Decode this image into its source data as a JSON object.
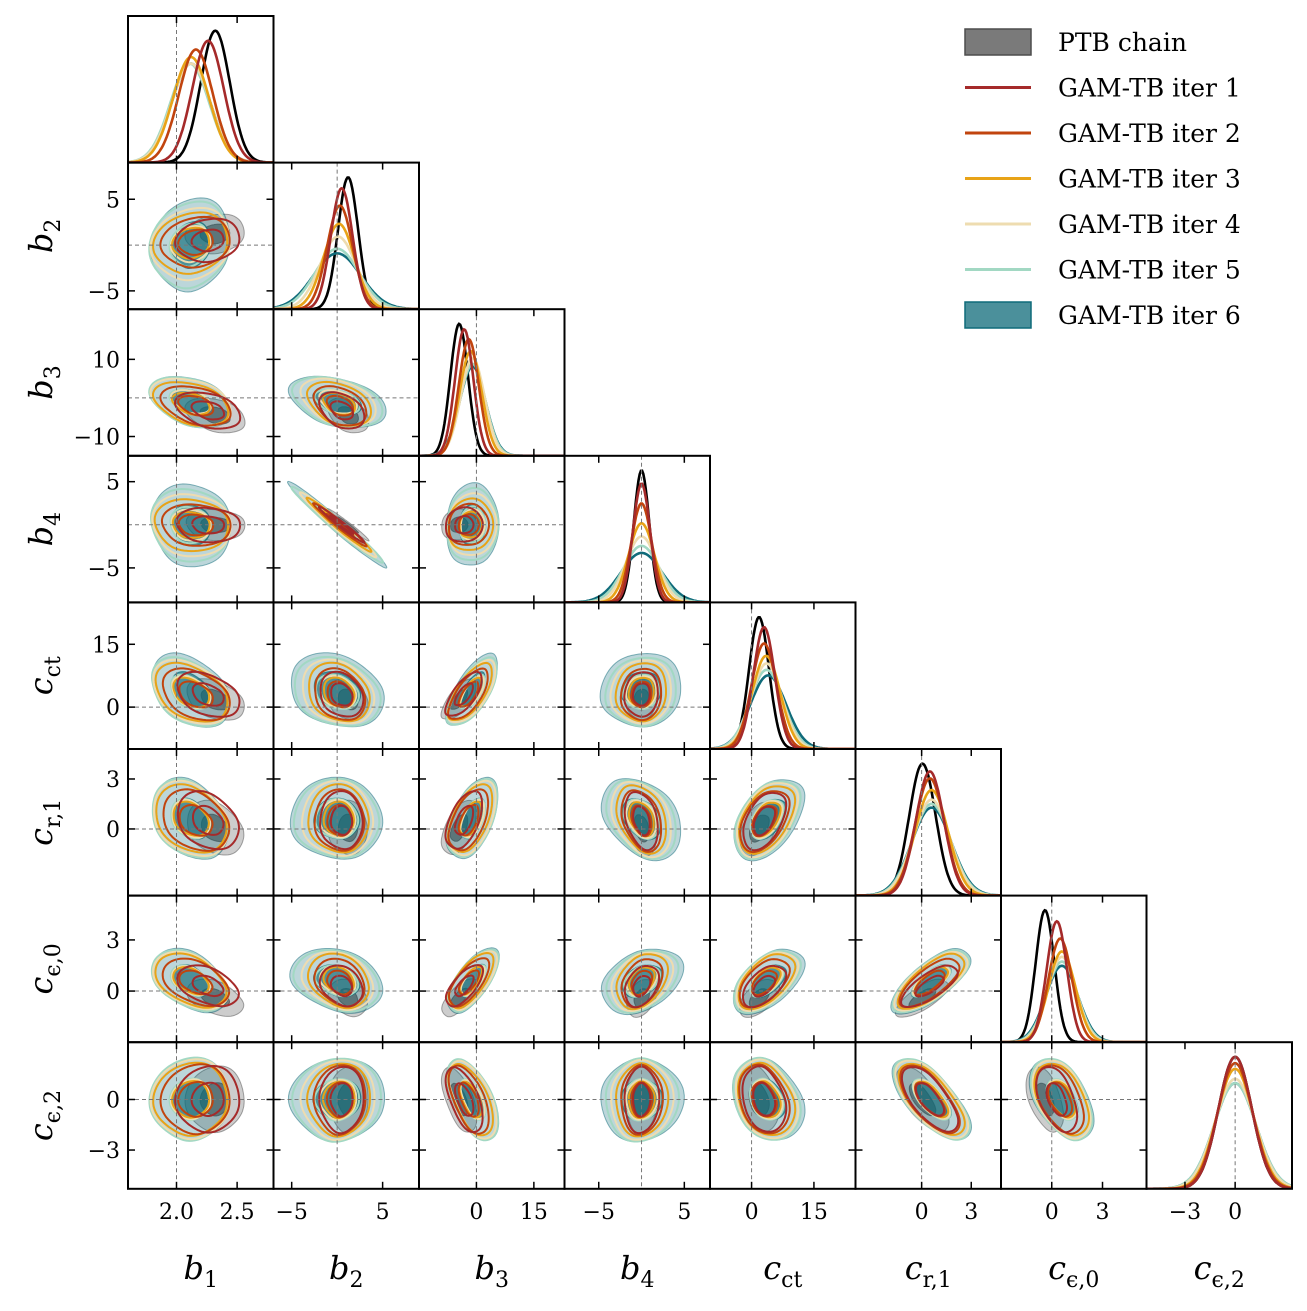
{
  "chart_data": {
    "type": "corner",
    "title": "",
    "parameters": [
      {
        "key": "b1",
        "base": "b",
        "sub": "1",
        "italic_sub": false,
        "truth": 2.0,
        "range": [
          1.6,
          2.8
        ],
        "ticks": [
          "2.0",
          "2.5"
        ],
        "tick_values": [
          2.0,
          2.5
        ]
      },
      {
        "key": "b2",
        "base": "b",
        "sub": "2",
        "italic_sub": false,
        "truth": 0.0,
        "range": [
          -7,
          9
        ],
        "ticks": [
          "−5",
          "5"
        ],
        "tick_values": [
          -5,
          5
        ]
      },
      {
        "key": "b3",
        "base": "b",
        "sub": "3",
        "italic_sub": false,
        "truth": 0.0,
        "range": [
          -15,
          23
        ],
        "ticks": [
          "0",
          "15"
        ],
        "tick_values": [
          0,
          15
        ],
        "row_ticks": [
          "10",
          "−10"
        ],
        "row_tick_values": [
          10,
          -10
        ]
      },
      {
        "key": "b4",
        "base": "b",
        "sub": "4",
        "italic_sub": false,
        "truth": 0.0,
        "range": [
          -9,
          8
        ],
        "ticks": [
          "−5",
          "5"
        ],
        "tick_values": [
          -5,
          5
        ]
      },
      {
        "key": "c_ct",
        "base": "c",
        "sub": "ct",
        "italic_sub": false,
        "truth": 0.0,
        "range": [
          -10,
          25
        ],
        "ticks": [
          "0",
          "15"
        ],
        "tick_values": [
          0,
          15
        ]
      },
      {
        "key": "c_r1",
        "base": "c",
        "sub": "r,1",
        "italic_sub": false,
        "truth": 0.0,
        "range": [
          -4,
          4.8
        ],
        "ticks": [
          "0",
          "3"
        ],
        "tick_values": [
          0,
          3
        ]
      },
      {
        "key": "c_eps0",
        "base": "c",
        "sub": "ϵ,0",
        "italic_sub": false,
        "truth": 0.0,
        "range": [
          -3,
          5.6
        ],
        "ticks": [
          "0",
          "3"
        ],
        "tick_values": [
          0,
          3
        ]
      },
      {
        "key": "c_eps2",
        "base": "c",
        "sub": "ϵ,2",
        "italic_sub": false,
        "truth": 0.0,
        "range": [
          -5.3,
          3.4
        ],
        "ticks": [
          "−3",
          "0"
        ],
        "tick_values": [
          -3,
          0
        ]
      }
    ],
    "series": [
      {
        "name": "PTB chain",
        "color": "#4d4d4d",
        "style": "filled",
        "center": [
          2.32,
          1.2,
          -4.5,
          0.0,
          1.8,
          0.05,
          -0.4,
          0.0
        ],
        "sigma": [
          0.12,
          1.1,
          2.3,
          0.9,
          2.4,
          0.8,
          0.55,
          1.0
        ]
      },
      {
        "name": "GAM-TB iter 1",
        "color": "#a52a2a",
        "style": "line",
        "center": [
          2.26,
          0.5,
          -3.2,
          0.0,
          3.0,
          0.5,
          0.3,
          0.0
        ],
        "sigma": [
          0.13,
          1.2,
          2.4,
          1.0,
          2.6,
          0.85,
          0.6,
          1.0
        ]
      },
      {
        "name": "GAM-TB iter 2",
        "color": "#c1440e",
        "style": "line",
        "center": [
          2.16,
          0.3,
          -2.0,
          0.0,
          3.0,
          0.5,
          0.5,
          0.0
        ],
        "sigma": [
          0.14,
          1.4,
          2.6,
          1.2,
          3.0,
          0.9,
          0.7,
          1.05
        ]
      },
      {
        "name": "GAM-TB iter 3",
        "color": "#e8a317",
        "style": "line",
        "center": [
          2.12,
          0.2,
          -1.5,
          0.0,
          3.5,
          0.6,
          0.6,
          0.0
        ],
        "sigma": [
          0.15,
          1.7,
          2.9,
          1.5,
          3.4,
          1.0,
          0.8,
          1.1
        ]
      },
      {
        "name": "GAM-TB iter 4",
        "color": "#eedcb0",
        "style": "line",
        "center": [
          2.12,
          0.1,
          -1.0,
          0.0,
          3.6,
          0.6,
          0.6,
          0.0
        ],
        "sigma": [
          0.16,
          2.0,
          3.1,
          1.8,
          3.7,
          1.1,
          0.85,
          1.2
        ]
      },
      {
        "name": "GAM-TB iter 5",
        "color": "#a2d8c3",
        "style": "line",
        "center": [
          2.11,
          0.0,
          -1.0,
          0.0,
          3.6,
          0.6,
          0.6,
          0.0
        ],
        "sigma": [
          0.16,
          2.4,
          3.3,
          2.1,
          4.0,
          1.15,
          0.9,
          1.25
        ]
      },
      {
        "name": "GAM-TB iter 6",
        "color": "#0f6b7a",
        "style": "filled",
        "center": [
          2.12,
          0.0,
          -1.0,
          0.0,
          4.0,
          0.6,
          0.6,
          0.0
        ],
        "sigma": [
          0.16,
          2.6,
          3.4,
          2.4,
          4.3,
          1.2,
          0.95,
          1.25
        ]
      }
    ],
    "correlations": [
      {
        "pair": [
          "b1",
          "b2"
        ],
        "rho": 0.1
      },
      {
        "pair": [
          "b1",
          "b3"
        ],
        "rho": -0.35
      },
      {
        "pair": [
          "b1",
          "b4"
        ],
        "rho": -0.05
      },
      {
        "pair": [
          "b1",
          "c_ct"
        ],
        "rho": -0.35
      },
      {
        "pair": [
          "b1",
          "c_r1"
        ],
        "rho": -0.3
      },
      {
        "pair": [
          "b1",
          "c_eps0"
        ],
        "rho": -0.45
      },
      {
        "pair": [
          "b1",
          "c_eps2"
        ],
        "rho": 0.0
      },
      {
        "pair": [
          "b2",
          "b3"
        ],
        "rho": -0.35
      },
      {
        "pair": [
          "b2",
          "b4"
        ],
        "rho": -0.98
      },
      {
        "pair": [
          "b2",
          "c_ct"
        ],
        "rho": -0.2
      },
      {
        "pair": [
          "b2",
          "c_r1"
        ],
        "rho": -0.05
      },
      {
        "pair": [
          "b2",
          "c_eps0"
        ],
        "rho": -0.3
      },
      {
        "pair": [
          "b2",
          "c_eps2"
        ],
        "rho": 0.0
      },
      {
        "pair": [
          "b3",
          "b4"
        ],
        "rho": 0.1
      },
      {
        "pair": [
          "b3",
          "c_ct"
        ],
        "rho": 0.7
      },
      {
        "pair": [
          "b3",
          "c_r1"
        ],
        "rho": 0.5
      },
      {
        "pair": [
          "b3",
          "c_eps0"
        ],
        "rho": 0.65
      },
      {
        "pair": [
          "b3",
          "c_eps2"
        ],
        "rho": -0.6
      },
      {
        "pair": [
          "b4",
          "c_ct"
        ],
        "rho": 0.1
      },
      {
        "pair": [
          "b4",
          "c_r1"
        ],
        "rho": -0.35
      },
      {
        "pair": [
          "b4",
          "c_eps0"
        ],
        "rho": 0.3
      },
      {
        "pair": [
          "b4",
          "c_eps2"
        ],
        "rho": 0.0
      },
      {
        "pair": [
          "c_ct",
          "c_r1"
        ],
        "rho": 0.45
      },
      {
        "pair": [
          "c_ct",
          "c_eps0"
        ],
        "rho": 0.5
      },
      {
        "pair": [
          "c_ct",
          "c_eps2"
        ],
        "rho": -0.3
      },
      {
        "pair": [
          "c_r1",
          "c_eps0"
        ],
        "rho": 0.7
      },
      {
        "pair": [
          "c_r1",
          "c_eps2"
        ],
        "rho": -0.7
      },
      {
        "pair": [
          "c_eps0",
          "c_eps2"
        ],
        "rho": -0.5
      }
    ],
    "contour_levels_sigma": [
      1,
      2
    ],
    "truth_lines": true,
    "legend_position": "top-right"
  }
}
